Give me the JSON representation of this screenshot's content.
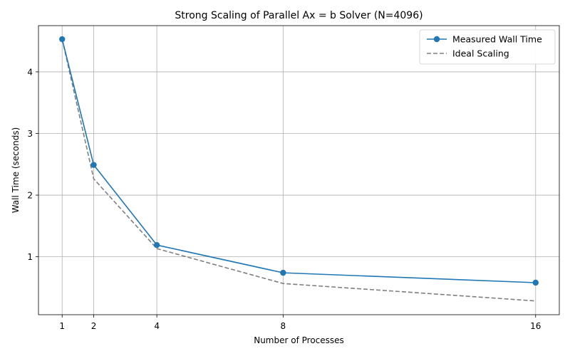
{
  "chart_data": {
    "type": "line",
    "title": "Strong Scaling of Parallel Ax = b Solver (N=4096)",
    "xlabel": "Number of Processes",
    "ylabel": "Wall Time (seconds)",
    "xlim": [
      0.25,
      16.75
    ],
    "ylim": [
      0.06,
      4.75
    ],
    "x_ticks": [
      1,
      2,
      4,
      8,
      16
    ],
    "y_ticks": [
      1,
      2,
      3,
      4
    ],
    "grid": true,
    "legend_position": "top-right",
    "x": [
      1,
      2,
      4,
      8,
      16
    ],
    "series": [
      {
        "name": "Measured Wall Time",
        "values": [
          4.53,
          2.49,
          1.19,
          0.74,
          0.58
        ],
        "color": "#1f77b4",
        "line_style": "solid",
        "marker": "circle"
      },
      {
        "name": "Ideal Scaling",
        "values": [
          4.53,
          2.265,
          1.1325,
          0.56625,
          0.283125
        ],
        "color": "#7f7f7f",
        "line_style": "dashed",
        "marker": "none"
      }
    ]
  }
}
